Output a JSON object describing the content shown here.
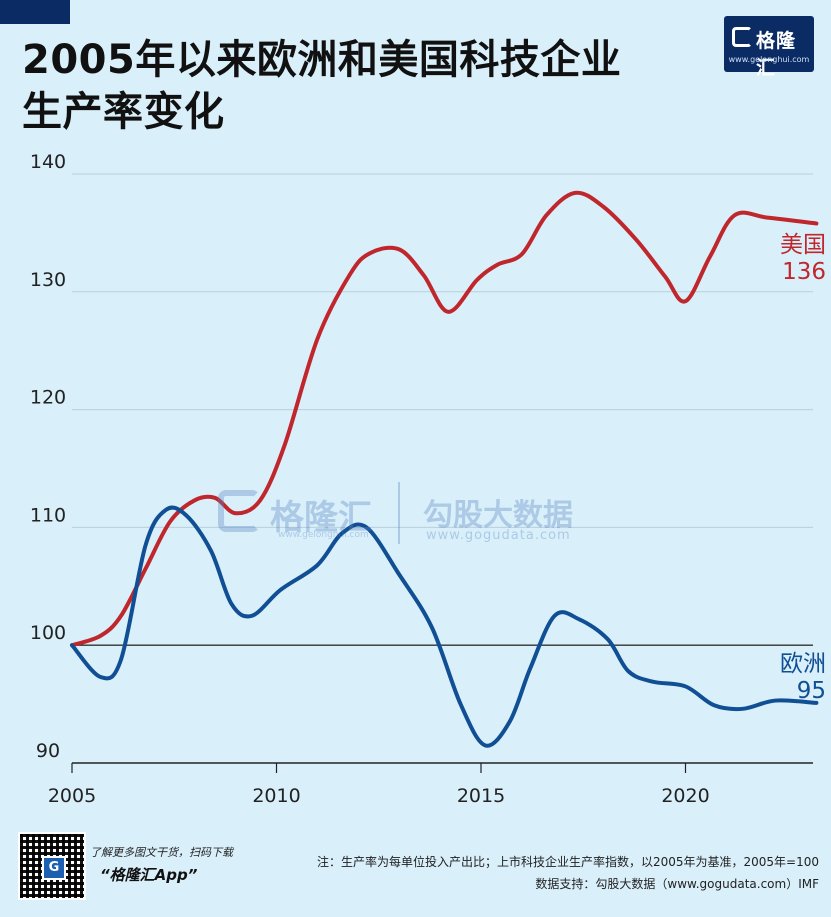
{
  "header": {
    "title_line1": "2005年以来欧洲和美国科技企业",
    "title_line2": "生产率变化"
  },
  "logo": {
    "name": "格隆汇",
    "url": "www.gelonghui.com",
    "mark": "G"
  },
  "watermark": {
    "name1": "格隆汇",
    "url1": "www.gelonghui.com",
    "name2": "勾股大数据",
    "url2": "www.gogudata.com"
  },
  "chart_data": {
    "type": "line",
    "xlim": [
      2005,
      2023.3
    ],
    "ylim": [
      90,
      140
    ],
    "xticks": [
      2005,
      2010,
      2015,
      2020
    ],
    "yticks": [
      90,
      100,
      110,
      120,
      130,
      140
    ],
    "baseline": 100,
    "grid": "horizontal",
    "series": [
      {
        "name": "美国",
        "end_label": "136",
        "color": "#c0272d",
        "x": [
          2005,
          2005.7,
          2006.2,
          2006.8,
          2007.4,
          2008,
          2008.5,
          2009,
          2009.6,
          2010.2,
          2011,
          2011.8,
          2012.3,
          2013,
          2013.6,
          2014.2,
          2014.9,
          2015.4,
          2016,
          2016.6,
          2017.3,
          2018,
          2018.8,
          2019.5,
          2020,
          2020.6,
          2021.2,
          2022,
          2023.2
        ],
        "y": [
          100,
          100.8,
          102.5,
          106.5,
          110.5,
          112.3,
          112.5,
          111.2,
          112.3,
          117,
          126,
          131.5,
          133.3,
          133.6,
          131.4,
          128.3,
          131,
          132.3,
          133.2,
          136.5,
          138.4,
          137.2,
          134.4,
          131.3,
          129.2,
          133,
          136.5,
          136.3,
          135.8
        ]
      },
      {
        "name": "欧洲",
        "end_label": "95",
        "color": "#104f94",
        "x": [
          2005,
          2005.7,
          2006.2,
          2006.8,
          2007.3,
          2007.8,
          2008.4,
          2008.9,
          2009.4,
          2010.1,
          2011,
          2011.6,
          2012.2,
          2013,
          2013.8,
          2014.5,
          2015.1,
          2015.7,
          2016.2,
          2016.8,
          2017.4,
          2018.1,
          2018.6,
          2019.2,
          2020,
          2020.7,
          2021.4,
          2022.2,
          2023.2
        ],
        "y": [
          100,
          97.3,
          98.8,
          108.5,
          111.5,
          111,
          108,
          103.5,
          102.5,
          104.7,
          106.8,
          109.5,
          110,
          106,
          101.5,
          95,
          91.5,
          93.5,
          98,
          102.5,
          102.2,
          100.5,
          97.8,
          96.9,
          96.5,
          94.9,
          94.6,
          95.3,
          95.1
        ]
      }
    ]
  },
  "footer": {
    "note": "注：生产率为每单位投入产出比；上市科技企业生产率指数，以2005年为基准，2005年=100",
    "source": "数据支持：勾股大数据（www.gogudata.com）IMF",
    "promo": "了解更多图文干货，扫码下载",
    "app": "“格隆汇App”",
    "qr_mark": "G"
  }
}
